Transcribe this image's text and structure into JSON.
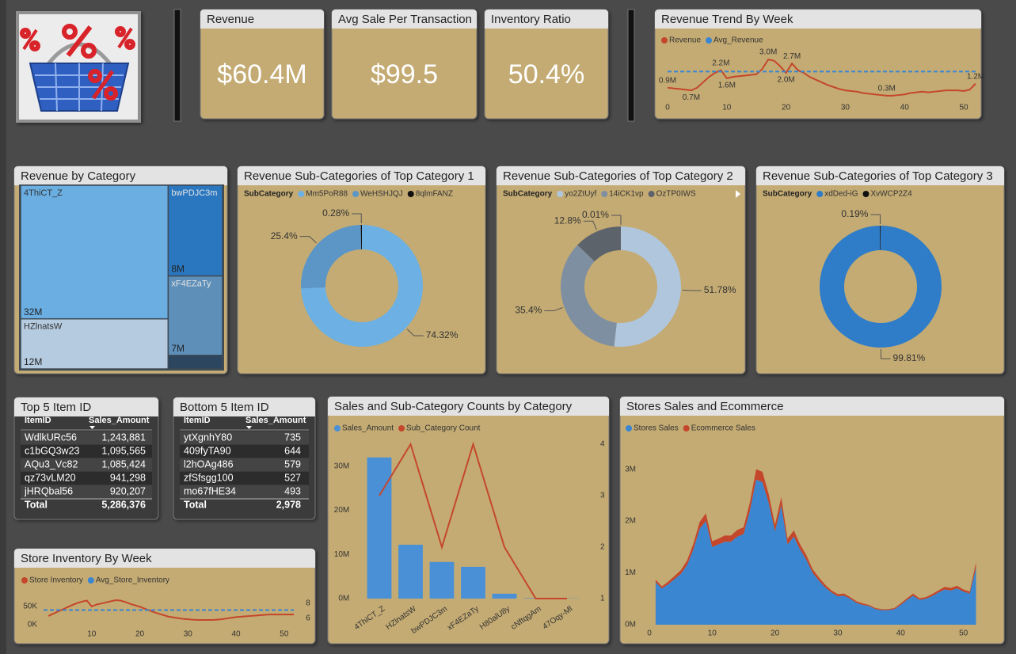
{
  "kpis": [
    {
      "title": "Revenue",
      "value": "$60.4M"
    },
    {
      "title": "Avg Sale Per Transaction",
      "value": "$99.5"
    },
    {
      "title": "Inventory Ratio",
      "value": "50.4%"
    }
  ],
  "tables": [
    {
      "title": "Top 5 Item ID",
      "columns": [
        "ItemID",
        "Sales_Amount"
      ],
      "rows": [
        [
          "WdlkURc56",
          "1,243,881"
        ],
        [
          "c1bGQ3w23",
          "1,095,565"
        ],
        [
          "AQu3_Vc82",
          "1,085,424"
        ],
        [
          "qz73vLM20",
          "941,298"
        ],
        [
          "jHRQbal56",
          "920,207"
        ]
      ],
      "total": [
        "Total",
        "5,286,376"
      ]
    },
    {
      "title": "Bottom 5 Item ID",
      "columns": [
        "ItemID",
        "Sales_Amount"
      ],
      "rows": [
        [
          "ytXgnhY80",
          "735"
        ],
        [
          "409fyTA90",
          "644"
        ],
        [
          "l2hOAg486",
          "579"
        ],
        [
          "zfSfsgg100",
          "527"
        ],
        [
          "mo67fHE34",
          "493"
        ]
      ],
      "total": [
        "Total",
        "2,978"
      ]
    }
  ],
  "chart_data": [
    {
      "type": "line",
      "title": "Revenue Trend By Week",
      "x": [
        0,
        1,
        2,
        3,
        4,
        5,
        6,
        7,
        8,
        9,
        10,
        11,
        12,
        13,
        14,
        15,
        16,
        17,
        18,
        19,
        20,
        21,
        22,
        23,
        24,
        25,
        26,
        27,
        28,
        29,
        30,
        31,
        32,
        33,
        34,
        35,
        36,
        37,
        38,
        39,
        40,
        41,
        42,
        43,
        44,
        45,
        46,
        47,
        48,
        49,
        50,
        51,
        52
      ],
      "series": [
        {
          "name": "Revenue",
          "color": "#c4472b",
          "values": [
            0.9,
            0.85,
            0.8,
            0.75,
            0.7,
            0.9,
            1.3,
            1.7,
            2.0,
            2.2,
            1.6,
            1.7,
            1.75,
            1.8,
            1.85,
            1.9,
            2.3,
            3.0,
            2.9,
            2.5,
            2.0,
            2.7,
            2.2,
            2.0,
            1.7,
            1.5,
            1.3,
            1.1,
            0.95,
            0.8,
            0.7,
            0.65,
            0.6,
            0.5,
            0.45,
            0.4,
            0.35,
            0.3,
            0.3,
            0.35,
            0.4,
            0.5,
            0.55,
            0.6,
            0.55,
            0.6,
            0.65,
            0.7,
            0.7,
            0.7,
            0.65,
            0.75,
            1.2
          ],
          "value_labels": [
            "0.9M",
            null,
            null,
            null,
            "0.7M",
            null,
            null,
            null,
            null,
            "2.2M",
            "1.6M",
            null,
            null,
            null,
            null,
            null,
            null,
            "3.0M",
            null,
            null,
            "2.0M",
            "2.7M",
            null,
            null,
            null,
            null,
            null,
            null,
            null,
            null,
            null,
            null,
            null,
            null,
            null,
            null,
            null,
            "0.3M",
            null,
            null,
            null,
            null,
            null,
            null,
            null,
            null,
            null,
            null,
            null,
            null,
            null,
            null,
            "1.2M"
          ]
        },
        {
          "name": "Avg_Revenue",
          "color": "#3a86d1",
          "reference": 2.1,
          "dashed": true
        }
      ],
      "xlim": [
        0,
        52
      ],
      "xticks": [
        0,
        10,
        20,
        30,
        40,
        50
      ],
      "ylim": [
        0,
        3.3
      ],
      "grid": false
    },
    {
      "type": "treemap",
      "title": "Revenue by Category",
      "categories": [
        "4ThiCT_Z",
        "HZlnatsW",
        "bwPDJC3m",
        "xF4EZaTy",
        null
      ],
      "values": [
        32,
        12,
        8,
        7,
        1.2
      ],
      "value_labels": [
        "32M",
        "12M",
        "8M",
        "7M",
        null
      ],
      "colors": [
        "#6aaee2",
        "#b4cbe0",
        "#2a77c0",
        "#5e8fb8",
        "#2d4660"
      ]
    },
    {
      "type": "pie",
      "donut": true,
      "title": "Revenue Sub-Categories of Top Category 1",
      "legend_title": "SubCategory",
      "categories": [
        "Mm5PoR88",
        "WeHSHJQJ",
        "8qlmFANZ"
      ],
      "values": [
        74.32,
        25.4,
        0.28
      ],
      "value_labels": [
        "74.32%",
        "25.4%",
        "0.28%"
      ],
      "colors": [
        "#6cb0e4",
        "#5b96c6",
        "#111111"
      ]
    },
    {
      "type": "pie",
      "donut": true,
      "title": "Revenue Sub-Categories of Top Category 2",
      "legend_title": "SubCategory",
      "categories": [
        "yo2ZtUyf",
        "14iCK1vp",
        "OzTP0IWS",
        null
      ],
      "values": [
        51.78,
        35.4,
        12.8,
        0.01
      ],
      "value_labels": [
        "51.78%",
        "35.4%",
        "12.8%",
        "0.01%"
      ],
      "colors": [
        "#afc6dd",
        "#7e8fa2",
        "#5d636b",
        "#1a1a1a"
      ]
    },
    {
      "type": "pie",
      "donut": true,
      "title": "Revenue Sub-Categories of Top Category 3",
      "legend_title": "SubCategory",
      "categories": [
        "xdDed-iG",
        "XvWCP2Z4"
      ],
      "values": [
        99.81,
        0.19
      ],
      "value_labels": [
        "99.81%",
        "0.19%"
      ],
      "colors": [
        "#2f7dc8",
        "#111111"
      ]
    },
    {
      "type": "bar",
      "title": "Sales and Sub-Category Counts by Category",
      "categories": [
        "4ThiCT_Z",
        "HZlnatsW",
        "bwPDJC3m",
        "xF4EZaTy",
        "H80alU8y",
        "cNftqgAm",
        "47Oqy-Ml"
      ],
      "series": [
        {
          "name": "Sales_Amount",
          "color": "#4a90d6",
          "values": [
            32.0,
            12.2,
            8.3,
            7.2,
            1.1,
            0.1,
            0.05
          ]
        },
        {
          "name": "Sub_Category Count",
          "color": "#c4472b",
          "type": "line",
          "axis": "y2",
          "values": [
            3,
            4,
            2,
            4,
            2,
            1,
            1
          ]
        }
      ],
      "ylim": [
        0,
        35
      ],
      "yticks": [
        {
          "value": 0,
          "label": "0M"
        },
        {
          "value": 10,
          "label": "10M"
        },
        {
          "value": 20,
          "label": "20M"
        },
        {
          "value": 30,
          "label": "30M"
        }
      ],
      "y2lim": [
        1,
        4
      ],
      "y2ticks": [
        1,
        2,
        3,
        4
      ],
      "grid": false
    },
    {
      "type": "line",
      "title": "Store Inventory By Week",
      "x": [
        1,
        2,
        3,
        4,
        5,
        6,
        7,
        8,
        9,
        10,
        11,
        12,
        13,
        14,
        15,
        16,
        17,
        18,
        19,
        20,
        21,
        22,
        23,
        24,
        25,
        26,
        27,
        28,
        29,
        30,
        31,
        32,
        33,
        34,
        35,
        36,
        37,
        38,
        39,
        40,
        41,
        42,
        43,
        44,
        45,
        46,
        47,
        48,
        49,
        50,
        51,
        52
      ],
      "series": [
        {
          "name": "Store Inventory",
          "color": "#c4472b",
          "values": [
            24,
            30,
            36,
            42,
            48,
            54,
            59,
            63,
            66,
            50,
            55,
            58,
            61,
            64,
            67,
            66,
            62,
            57,
            53,
            49,
            44,
            39,
            34,
            30,
            26,
            22,
            20,
            18,
            16,
            15,
            14,
            13,
            13,
            13,
            13,
            14,
            15,
            17,
            19,
            21,
            22,
            23,
            24,
            25,
            26,
            27,
            28,
            28,
            28,
            28,
            28,
            28
          ]
        },
        {
          "name": "Avg_Store_Inventory",
          "color": "#3a86d1",
          "reference": 40,
          "dashed": true
        }
      ],
      "xlim": [
        0,
        52
      ],
      "xticks": [
        10,
        20,
        30,
        40,
        50
      ],
      "ylim": [
        -15,
        80
      ],
      "yticks": [
        {
          "value": 50,
          "label": "50K"
        },
        {
          "value": 0,
          "label": "0K"
        }
      ],
      "y2lim": [
        4.4,
        9.05
      ],
      "y2ticks": [
        8,
        6
      ],
      "grid": false
    },
    {
      "type": "area",
      "stacked": true,
      "title": "Stores Sales and Ecommerce",
      "x": [
        1,
        2,
        3,
        4,
        5,
        6,
        7,
        8,
        9,
        10,
        11,
        12,
        13,
        14,
        15,
        16,
        17,
        18,
        19,
        20,
        21,
        22,
        23,
        24,
        25,
        26,
        27,
        28,
        29,
        30,
        31,
        32,
        33,
        34,
        35,
        36,
        37,
        38,
        39,
        40,
        41,
        42,
        43,
        44,
        45,
        46,
        47,
        48,
        49,
        50,
        51,
        52
      ],
      "series": [
        {
          "name": "Stores Sales",
          "color": "#3a86d1",
          "values": [
            0.82,
            0.7,
            0.78,
            0.88,
            0.98,
            1.15,
            1.45,
            1.85,
            2.0,
            1.5,
            1.55,
            1.6,
            1.6,
            1.7,
            1.75,
            2.2,
            2.8,
            2.75,
            2.35,
            1.8,
            2.3,
            1.55,
            1.7,
            1.45,
            1.25,
            1.0,
            0.85,
            0.72,
            0.62,
            0.55,
            0.56,
            0.5,
            0.42,
            0.38,
            0.36,
            0.3,
            0.28,
            0.28,
            0.3,
            0.38,
            0.48,
            0.56,
            0.48,
            0.5,
            0.55,
            0.62,
            0.68,
            0.66,
            0.7,
            0.64,
            0.6,
            1.1
          ]
        },
        {
          "name": "Ecommerce Sales",
          "color": "#c4472b",
          "values": [
            0.05,
            0.04,
            0.05,
            0.06,
            0.07,
            0.09,
            0.11,
            0.13,
            0.15,
            0.11,
            0.11,
            0.12,
            0.12,
            0.13,
            0.13,
            0.16,
            0.2,
            0.2,
            0.17,
            0.13,
            0.16,
            0.11,
            0.12,
            0.1,
            0.09,
            0.07,
            0.06,
            0.05,
            0.04,
            0.04,
            0.04,
            0.03,
            0.03,
            0.03,
            0.02,
            0.02,
            0.02,
            0.02,
            0.02,
            0.03,
            0.03,
            0.04,
            0.03,
            0.03,
            0.04,
            0.04,
            0.05,
            0.05,
            0.05,
            0.04,
            0.04,
            0.1
          ]
        }
      ],
      "xlim": [
        0,
        52
      ],
      "xticks": [
        0,
        10,
        20,
        30,
        40,
        50
      ],
      "ylim": [
        0,
        3.3
      ],
      "yticks": [
        {
          "value": 0,
          "label": "0M"
        },
        {
          "value": 1,
          "label": "1M"
        },
        {
          "value": 2,
          "label": "2M"
        },
        {
          "value": 3,
          "label": "3M"
        }
      ],
      "grid": false
    }
  ]
}
